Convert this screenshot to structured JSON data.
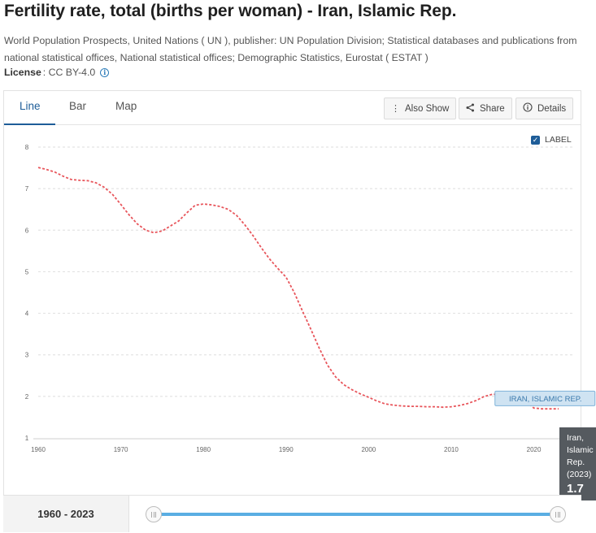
{
  "header": {
    "title": "Fertility rate, total (births per woman) - Iran, Islamic Rep.",
    "source": "World Population Prospects, United Nations ( UN ), publisher: UN Population Division; Statistical databases and publications from national statistical offices, National statistical offices; Demographic Statistics, Eurostat ( ESTAT )",
    "license_label": "License",
    "license_value": ": CC BY-4.0",
    "info_icon": "info-icon"
  },
  "tabs": [
    {
      "label": "Line",
      "active": true
    },
    {
      "label": "Bar",
      "active": false
    },
    {
      "label": "Map",
      "active": false
    }
  ],
  "toolbar": {
    "also_show": "Also Show",
    "share": "Share",
    "details": "Details"
  },
  "label_toggle": {
    "text": "LABEL",
    "checked": true
  },
  "colors": {
    "series": "#e8555b",
    "accent": "#1e5d98",
    "label_box_fill": "#cfe3f2",
    "label_box_border": "#7fb3d9",
    "label_text": "#3a79ac",
    "slider": "#5aaee3"
  },
  "chart_data": {
    "type": "line",
    "title": "",
    "xlabel": "",
    "ylabel": "",
    "xlim": [
      1960,
      2023
    ],
    "ylim": [
      1,
      8
    ],
    "x_ticks": [
      1960,
      1970,
      1980,
      1990,
      2000,
      2010,
      2020
    ],
    "x_tick_labels": [
      "1960",
      "1970",
      "1980",
      "1990",
      "2000",
      "2010",
      "2020"
    ],
    "y_ticks": [
      1,
      2,
      3,
      4,
      5,
      6,
      7,
      8
    ],
    "y_tick_labels": [
      "1",
      "2",
      "3",
      "4",
      "5",
      "6",
      "7",
      "8"
    ],
    "grid": "horizontal dashed",
    "series": [
      {
        "name": "IRAN, ISLAMIC REP.",
        "line_style": "dashed",
        "x": [
          1960,
          1961,
          1962,
          1963,
          1964,
          1965,
          1966,
          1967,
          1968,
          1969,
          1970,
          1971,
          1972,
          1973,
          1974,
          1975,
          1976,
          1977,
          1978,
          1979,
          1980,
          1981,
          1982,
          1983,
          1984,
          1985,
          1986,
          1987,
          1988,
          1989,
          1990,
          1991,
          1992,
          1993,
          1994,
          1995,
          1996,
          1997,
          1998,
          1999,
          2000,
          2001,
          2002,
          2003,
          2004,
          2005,
          2006,
          2007,
          2008,
          2009,
          2010,
          2011,
          2012,
          2013,
          2014,
          2015,
          2016,
          2017,
          2018,
          2019,
          2020,
          2021,
          2022,
          2023
        ],
        "y": [
          7.51,
          7.46,
          7.4,
          7.3,
          7.22,
          7.2,
          7.19,
          7.14,
          7.03,
          6.86,
          6.62,
          6.37,
          6.15,
          6.0,
          5.94,
          5.98,
          6.1,
          6.22,
          6.42,
          6.6,
          6.63,
          6.61,
          6.57,
          6.5,
          6.36,
          6.13,
          5.87,
          5.58,
          5.31,
          5.08,
          4.87,
          4.5,
          4.05,
          3.62,
          3.17,
          2.76,
          2.47,
          2.28,
          2.16,
          2.06,
          1.98,
          1.89,
          1.82,
          1.79,
          1.77,
          1.76,
          1.76,
          1.75,
          1.75,
          1.74,
          1.75,
          1.78,
          1.83,
          1.9,
          2.0,
          2.05,
          2.05,
          2.02,
          1.95,
          1.9,
          1.72,
          1.7,
          1.7,
          1.7
        ]
      }
    ],
    "series_label": {
      "text": "IRAN, ISLAMIC REP.",
      "anchor_year": 2018
    },
    "legend": "none"
  },
  "tooltip": {
    "name": "Iran, Islamic Rep. (2023)",
    "value": "1.7"
  },
  "range": {
    "label": "1960 - 2023",
    "start": 1960,
    "end": 2023
  }
}
